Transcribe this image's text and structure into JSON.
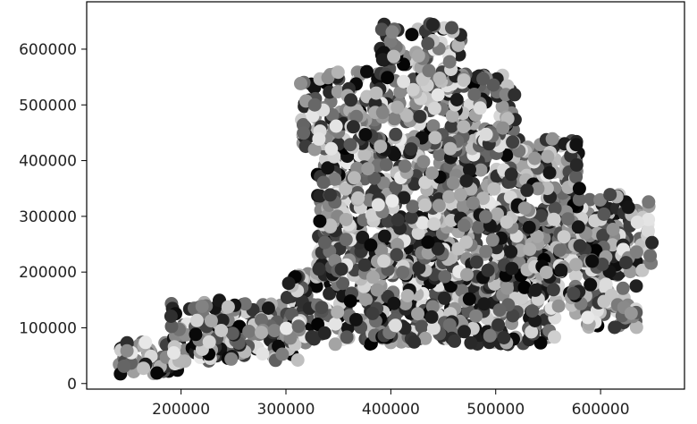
{
  "chart_data": {
    "type": "scatter",
    "title": "",
    "xlabel": "",
    "ylabel": "",
    "xlim": [
      110000,
      680000
    ],
    "ylim": [
      -10000,
      685000
    ],
    "xticks": [
      200000,
      300000,
      400000,
      500000,
      600000
    ],
    "yticks": [
      0,
      100000,
      200000,
      300000,
      400000,
      500000,
      600000
    ],
    "xtick_labels": [
      "200000",
      "300000",
      "400000",
      "500000",
      "600000"
    ],
    "ytick_labels": [
      "0",
      "100000",
      "200000",
      "300000",
      "400000",
      "500000",
      "600000"
    ],
    "grid": false,
    "legend": "none",
    "colormap": "grayscale",
    "marker": "circle",
    "point_regions": [
      {
        "name": "",
        "x_range": [
          140000,
          200000
        ],
        "y_range": [
          15000,
          75000
        ],
        "count": 70
      },
      {
        "name": "",
        "x_range": [
          190000,
          320000
        ],
        "y_range": [
          40000,
          150000
        ],
        "count": 180
      },
      {
        "name": "",
        "x_range": [
          300000,
          560000
        ],
        "y_range": [
          70000,
          200000
        ],
        "count": 420
      },
      {
        "name": "",
        "x_range": [
          330000,
          620000
        ],
        "y_range": [
          190000,
          300000
        ],
        "count": 520
      },
      {
        "name": "",
        "x_range": [
          560000,
          650000
        ],
        "y_range": [
          200000,
          340000
        ],
        "count": 160
      },
      {
        "name": "",
        "x_range": [
          570000,
          640000
        ],
        "y_range": [
          100000,
          180000
        ],
        "count": 60
      },
      {
        "name": "",
        "x_range": [
          330000,
          580000
        ],
        "y_range": [
          280000,
          440000
        ],
        "count": 480
      },
      {
        "name": "",
        "x_range": [
          310000,
          520000
        ],
        "y_range": [
          420000,
          560000
        ],
        "count": 300
      },
      {
        "name": "",
        "x_range": [
          390000,
          470000
        ],
        "y_range": [
          540000,
          650000
        ],
        "count": 90
      }
    ]
  }
}
